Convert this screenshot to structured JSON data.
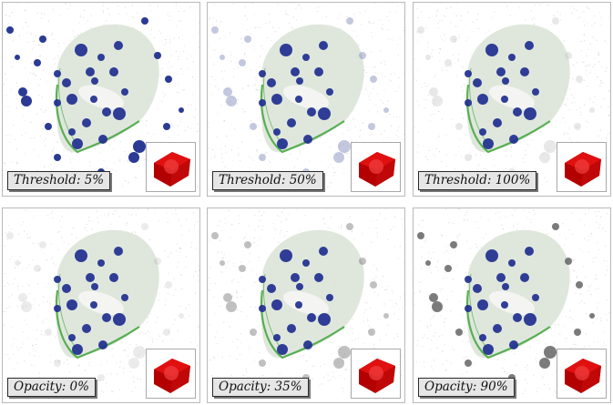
{
  "panels": [
    {
      "caption": "Threshold: 5%",
      "mode": "threshold",
      "value_percent": 5
    },
    {
      "caption": "Threshold: 50%",
      "mode": "threshold",
      "value_percent": 50
    },
    {
      "caption": "Threshold: 100%",
      "mode": "threshold",
      "value_percent": 100
    },
    {
      "caption": "Opacity: 0%",
      "mode": "opacity",
      "value_percent": 0
    },
    {
      "caption": "Opacity: 35%",
      "mode": "opacity",
      "value_percent": 35
    },
    {
      "caption": "Opacity: 90%",
      "mode": "opacity",
      "value_percent": 90
    }
  ],
  "colors": {
    "sphere_blue": "#1f2f8f",
    "outer_sphere_gray": "#5a5a5a",
    "shell_fill": "#d9e3d6",
    "shell_edge_green": "#3fa33a",
    "cube_red": "#e01010"
  }
}
